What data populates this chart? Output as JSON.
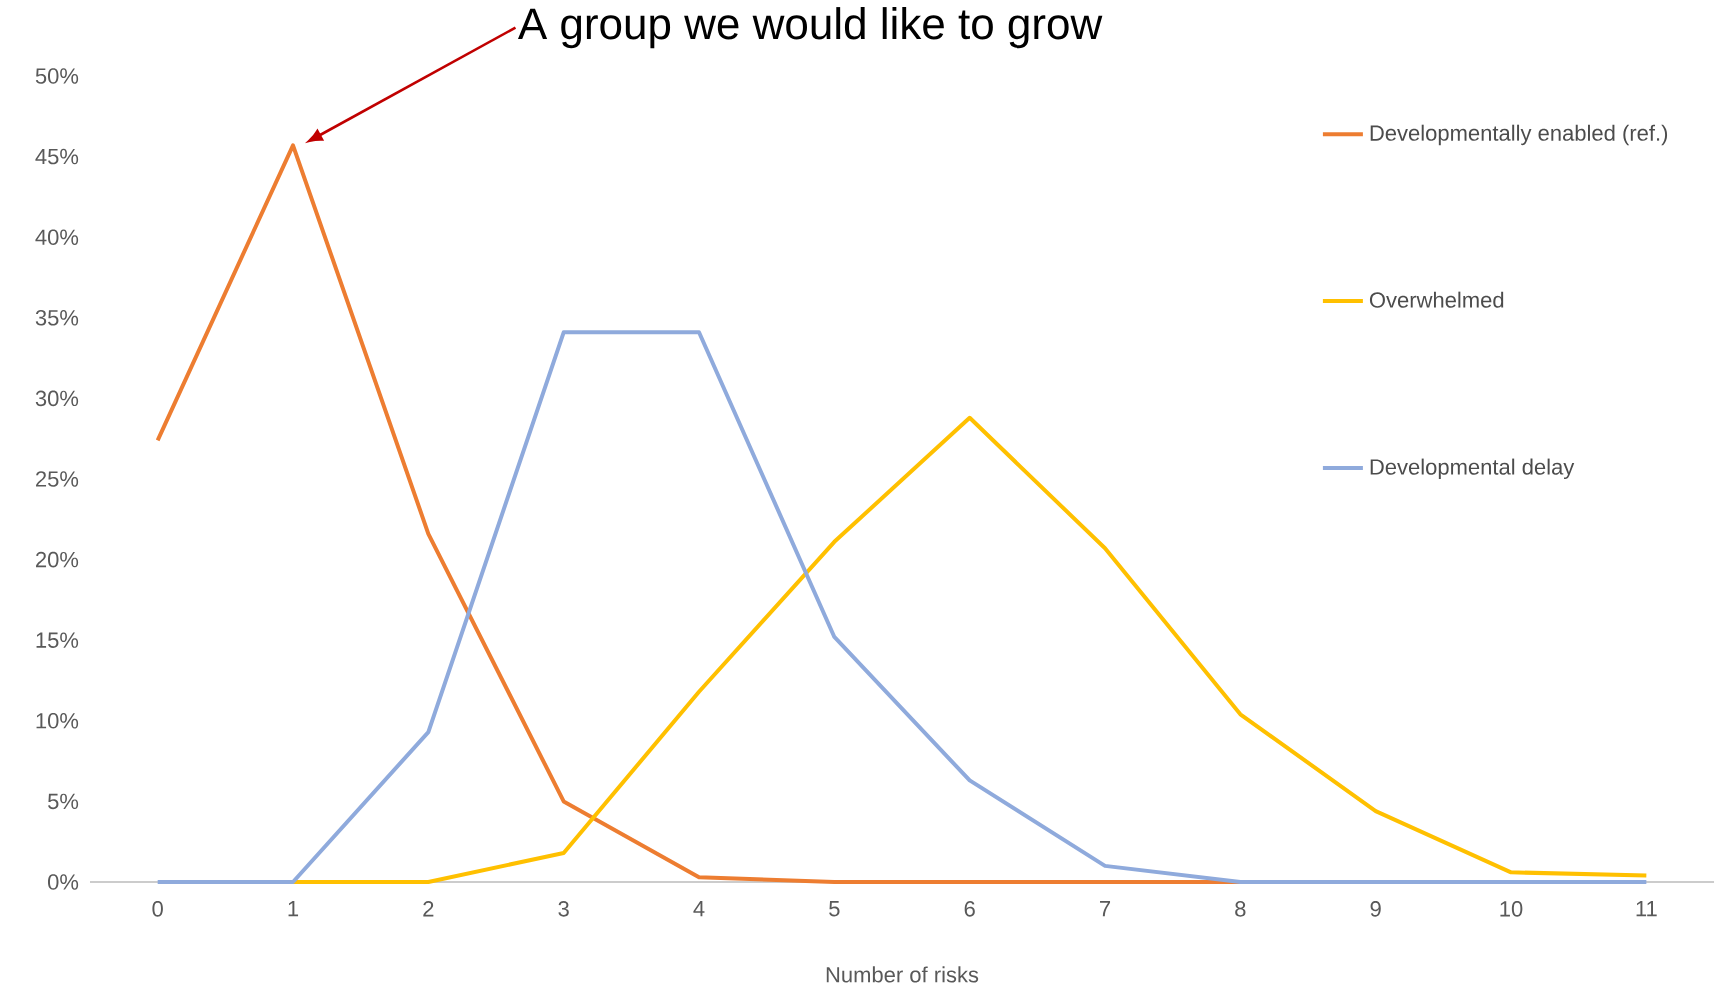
{
  "chart_data": {
    "type": "line",
    "xlabel": "Number of risks",
    "categories": [
      "0",
      "1",
      "2",
      "3",
      "4",
      "5",
      "6",
      "7",
      "8",
      "9",
      "10",
      "11"
    ],
    "series": [
      {
        "name": "Developmentally enabled (ref.)",
        "color": "#ed7d31",
        "values": [
          27.4,
          45.7,
          21.6,
          5.0,
          0.3,
          0,
          0,
          0,
          0,
          null,
          null,
          null
        ]
      },
      {
        "name": "Overwhelmed",
        "color": "#ffc000",
        "values": [
          null,
          0,
          0,
          1.8,
          11.8,
          21.1,
          28.8,
          20.7,
          10.4,
          4.4,
          0.6,
          0.4
        ]
      },
      {
        "name": "Developmental delay",
        "color": "#8faadc",
        "values": [
          0,
          0,
          9.3,
          34.1,
          34.1,
          15.2,
          6.3,
          1.0,
          0,
          0,
          0,
          0
        ]
      }
    ],
    "ylim": [
      0,
      50
    ],
    "yticks": [
      {
        "value": 0,
        "label": "0%"
      },
      {
        "value": 5,
        "label": "5%"
      },
      {
        "value": 10,
        "label": "10%"
      },
      {
        "value": 15,
        "label": "15%"
      },
      {
        "value": 20,
        "label": "20%"
      },
      {
        "value": 25,
        "label": "25%"
      },
      {
        "value": 30,
        "label": "30%"
      },
      {
        "value": 35,
        "label": "35%"
      },
      {
        "value": 40,
        "label": "40%"
      },
      {
        "value": 45,
        "label": "45%"
      },
      {
        "value": 50,
        "label": "50%"
      }
    ],
    "legend": "right",
    "marker": "none",
    "line_style": "solid",
    "annotations": [
      "A group we would like to grow"
    ]
  }
}
